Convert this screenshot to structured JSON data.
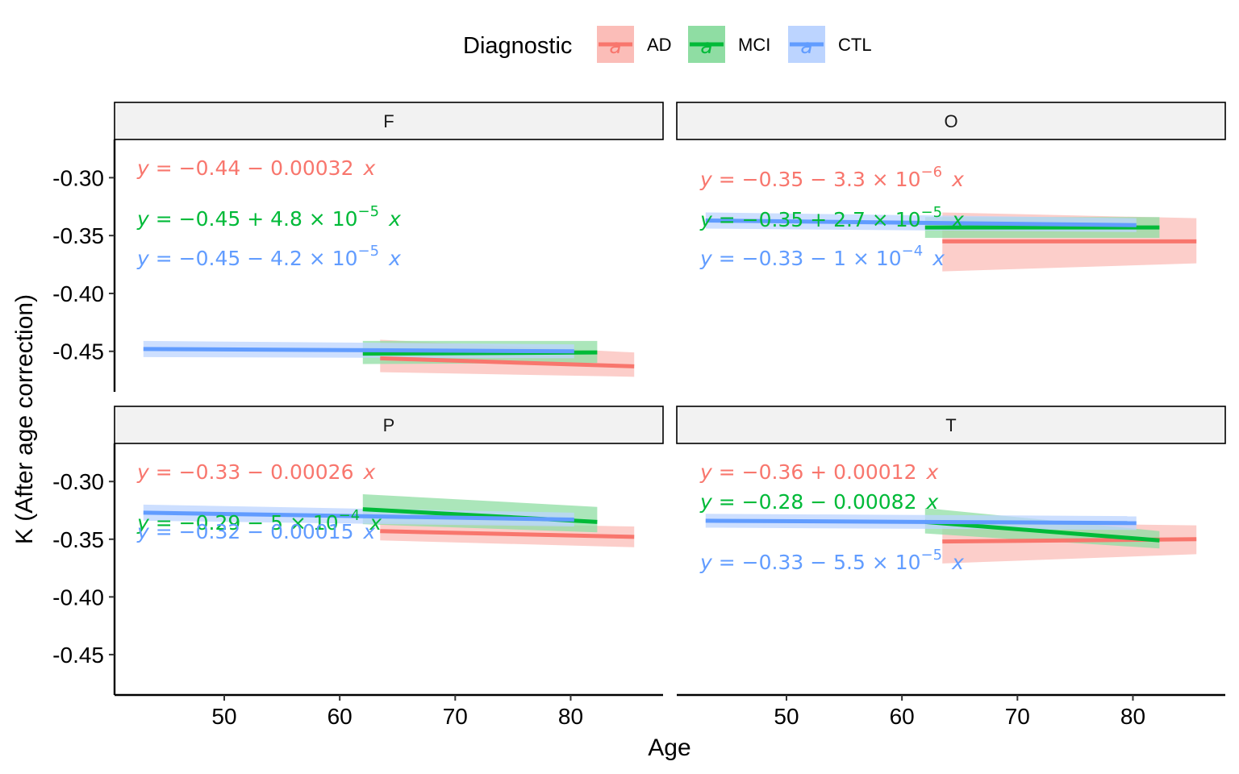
{
  "chart_data": {
    "type": "line",
    "layout": "facet_wrap 2x2",
    "xlabel": "Age",
    "ylabel": "K (After age correction)",
    "xlim": [
      40.5,
      88
    ],
    "ylim": [
      -0.485,
      -0.267
    ],
    "x_ticks": [
      50,
      60,
      70,
      80
    ],
    "x_tick_labels": [
      "50",
      "60",
      "70",
      "80"
    ],
    "y_ticks": [
      -0.3,
      -0.35,
      -0.4,
      -0.45
    ],
    "y_tick_labels": [
      "-0.30",
      "-0.35",
      "-0.40",
      "-0.45"
    ],
    "grid": false,
    "legend": {
      "title": "Diagnostic",
      "position": "top",
      "key_glyph": "a",
      "entries": [
        {
          "name": "AD",
          "color": "#F8766D",
          "fill": "#FBBDB8"
        },
        {
          "name": "MCI",
          "color": "#00BA38",
          "fill": "#8FDDA3"
        },
        {
          "name": "CTL",
          "color": "#619CFF",
          "fill": "#BCD4FF"
        }
      ]
    },
    "panels": [
      {
        "label": "F",
        "series": [
          {
            "name": "AD",
            "x": [
              63.5,
              85.5
            ],
            "y": [
              -0.456,
              -0.463
            ],
            "ci_lower": [
              -0.468,
              -0.472
            ],
            "ci_upper": [
              -0.44,
              -0.451
            ],
            "equation": {
              "y": "y",
              "eq": " = ",
              "body": "−0.44 − 0.00032",
              "exp": "",
              "x": "x"
            }
          },
          {
            "name": "MCI",
            "x": [
              62.0,
              82.3
            ],
            "y": [
              -0.452,
              -0.451
            ],
            "ci_lower": [
              -0.461,
              -0.46
            ],
            "ci_upper": [
              -0.441,
              -0.441
            ],
            "equation": {
              "y": "y",
              "eq": " = ",
              "body": "−0.45 + 4.8 × 10",
              "exp": "−5",
              "x": "x"
            }
          },
          {
            "name": "CTL",
            "x": [
              43.0,
              80.3
            ],
            "y": [
              -0.448,
              -0.45
            ],
            "ci_lower": [
              -0.455,
              -0.456
            ],
            "ci_upper": [
              -0.441,
              -0.444
            ],
            "equation": {
              "y": "y",
              "eq": " = ",
              "body": "−0.45 − 4.2 × 10",
              "exp": "−5",
              "x": "x"
            }
          }
        ]
      },
      {
        "label": "O",
        "series": [
          {
            "name": "AD",
            "x": [
              63.5,
              85.5
            ],
            "y": [
              -0.355,
              -0.355
            ],
            "ci_lower": [
              -0.381,
              -0.374
            ],
            "ci_upper": [
              -0.33,
              -0.335
            ],
            "equation": {
              "y": "y",
              "eq": " = ",
              "body": "−0.35 − 3.3 × 10",
              "exp": "−6",
              "x": "x"
            }
          },
          {
            "name": "MCI",
            "x": [
              62.0,
              82.3
            ],
            "y": [
              -0.343,
              -0.343
            ],
            "ci_lower": [
              -0.352,
              -0.352
            ],
            "ci_upper": [
              -0.334,
              -0.334
            ],
            "equation": {
              "y": "y",
              "eq": " = ",
              "body": "−0.35 + 2.7 × 10",
              "exp": "−5",
              "x": "x"
            }
          },
          {
            "name": "CTL",
            "x": [
              43.0,
              80.3
            ],
            "y": [
              -0.337,
              -0.341
            ],
            "ci_lower": [
              -0.344,
              -0.347
            ],
            "ci_upper": [
              -0.33,
              -0.335
            ],
            "equation": {
              "y": "y",
              "eq": " = ",
              "body": "−0.33 − 1 × 10",
              "exp": "−4",
              "x": "x"
            }
          }
        ]
      },
      {
        "label": "P",
        "series": [
          {
            "name": "AD",
            "x": [
              63.5,
              85.5
            ],
            "y": [
              -0.343,
              -0.348
            ],
            "ci_lower": [
              -0.351,
              -0.357
            ],
            "ci_upper": [
              -0.335,
              -0.339
            ],
            "equation": {
              "y": "y",
              "eq": " = ",
              "body": "−0.33 − 0.00026",
              "exp": "",
              "x": "x"
            }
          },
          {
            "name": "MCI",
            "x": [
              62.0,
              82.3
            ],
            "y": [
              -0.324,
              -0.335
            ],
            "ci_lower": [
              -0.337,
              -0.344
            ],
            "ci_upper": [
              -0.311,
              -0.322
            ],
            "equation": {
              "y": "y",
              "eq": " = ",
              "body": "−0.29 − 5 × 10",
              "exp": "−4",
              "x": "x"
            }
          },
          {
            "name": "CTL",
            "x": [
              43.0,
              80.3
            ],
            "y": [
              -0.327,
              -0.333
            ],
            "ci_lower": [
              -0.334,
              -0.339
            ],
            "ci_upper": [
              -0.32,
              -0.327
            ],
            "equation": {
              "y": "y",
              "eq": " = ",
              "body": "−0.32 − 0.00015",
              "exp": "",
              "x": "x"
            }
          }
        ]
      },
      {
        "label": "T",
        "series": [
          {
            "name": "AD",
            "x": [
              63.5,
              85.5
            ],
            "y": [
              -0.352,
              -0.35
            ],
            "ci_lower": [
              -0.371,
              -0.363
            ],
            "ci_upper": [
              -0.335,
              -0.338
            ],
            "equation": {
              "y": "y",
              "eq": " = ",
              "body": "−0.36 + 0.00012",
              "exp": "",
              "x": "x"
            }
          },
          {
            "name": "MCI",
            "x": [
              62.0,
              82.3
            ],
            "y": [
              -0.335,
              -0.351
            ],
            "ci_lower": [
              -0.345,
              -0.358
            ],
            "ci_upper": [
              -0.323,
              -0.343
            ],
            "equation": {
              "y": "y",
              "eq": " = ",
              "body": "−0.28 − 0.00082",
              "exp": "",
              "x": "x"
            }
          },
          {
            "name": "CTL",
            "x": [
              43.0,
              80.3
            ],
            "y": [
              -0.334,
              -0.336
            ],
            "ci_lower": [
              -0.34,
              -0.342
            ],
            "ci_upper": [
              -0.328,
              -0.33
            ],
            "equation": {
              "y": "y",
              "eq": " = ",
              "body": "−0.33 − 5.5 × 10",
              "exp": "−5",
              "x": "x"
            }
          }
        ]
      }
    ]
  }
}
